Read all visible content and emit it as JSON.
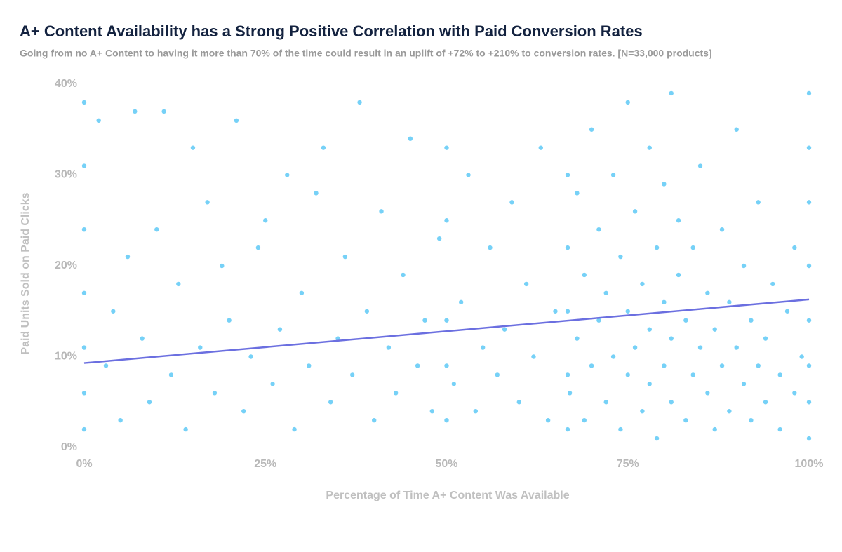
{
  "chart_data": {
    "type": "scatter",
    "title": "A+ Content Availability has a Strong Positive Correlation with Paid Conversion Rates",
    "subtitle": "Going from no A+ Content to having it more than 70% of the time could result in an uplift of +72% to +210% to conversion rates. [N=33,000 products]",
    "x_label": "Percentage of Time A+ Content Was Available",
    "y_label": "Paid Units Sold on Paid Clicks",
    "xlim": [
      0,
      100
    ],
    "ylim": [
      0,
      40
    ],
    "xticks": [
      {
        "value": 0,
        "label": "0%"
      },
      {
        "value": 25,
        "label": "25%"
      },
      {
        "value": 50,
        "label": "50%"
      },
      {
        "value": 75,
        "label": "75%"
      },
      {
        "value": 100,
        "label": "100%"
      }
    ],
    "yticks": [
      {
        "value": 0,
        "label": "0%"
      },
      {
        "value": 10,
        "label": "10%"
      },
      {
        "value": 20,
        "label": "20%"
      },
      {
        "value": 30,
        "label": "30%"
      },
      {
        "value": 40,
        "label": "40%"
      }
    ],
    "grid": false,
    "series": [
      {
        "type": "scatter",
        "color": "#1ab2f2",
        "x": [
          0,
          0,
          0,
          0,
          0,
          0,
          0,
          100,
          100,
          100,
          100,
          100,
          100,
          100,
          100,
          50,
          50,
          50,
          50,
          50,
          66.7,
          66.7,
          66.7,
          66.7,
          66.7,
          2,
          3,
          4,
          5,
          6,
          7,
          8,
          9,
          10,
          11,
          12,
          13,
          14,
          15,
          16,
          17,
          18,
          19,
          20,
          21,
          22,
          23,
          24,
          25,
          26,
          27,
          28,
          29,
          30,
          31,
          32,
          33,
          34,
          35,
          36,
          37,
          38,
          39,
          40,
          41,
          42,
          43,
          44,
          45,
          46,
          47,
          48,
          49,
          51,
          52,
          53,
          54,
          55,
          56,
          57,
          58,
          59,
          60,
          61,
          62,
          63,
          64,
          65,
          67,
          68,
          68,
          69,
          69,
          70,
          70,
          71,
          71,
          72,
          72,
          73,
          73,
          74,
          74,
          75,
          75,
          75,
          76,
          76,
          77,
          77,
          78,
          78,
          78,
          79,
          79,
          80,
          80,
          80,
          81,
          81,
          81,
          82,
          82,
          83,
          83,
          84,
          84,
          85,
          85,
          86,
          86,
          87,
          87,
          88,
          88,
          89,
          89,
          90,
          90,
          91,
          91,
          92,
          92,
          93,
          93,
          94,
          94,
          95,
          96,
          96,
          97,
          98,
          98,
          99
        ],
        "values": [
          2,
          6,
          11,
          17,
          24,
          31,
          38,
          1,
          5,
          9,
          14,
          20,
          27,
          33,
          39,
          3,
          9,
          14,
          25,
          33,
          2,
          8,
          15,
          22,
          30,
          36,
          9,
          15,
          3,
          21,
          37,
          12,
          5,
          24,
          37,
          8,
          18,
          2,
          33,
          11,
          27,
          6,
          20,
          14,
          36,
          4,
          10,
          22,
          25,
          7,
          13,
          30,
          2,
          17,
          9,
          28,
          33,
          5,
          12,
          21,
          8,
          38,
          15,
          3,
          26,
          11,
          6,
          19,
          34,
          9,
          14,
          4,
          23,
          7,
          16,
          30,
          4,
          11,
          22,
          8,
          13,
          27,
          5,
          18,
          10,
          33,
          3,
          15,
          6,
          12,
          28,
          3,
          19,
          9,
          35,
          14,
          24,
          5,
          17,
          10,
          30,
          2,
          21,
          8,
          15,
          38,
          11,
          26,
          4,
          18,
          7,
          13,
          33,
          22,
          1,
          9,
          16,
          29,
          5,
          12,
          39,
          19,
          25,
          3,
          14,
          8,
          22,
          11,
          31,
          6,
          17,
          2,
          13,
          9,
          24,
          4,
          16,
          11,
          35,
          7,
          20,
          3,
          14,
          9,
          27,
          5,
          12,
          18,
          2,
          8,
          15,
          6,
          22,
          10
        ]
      },
      {
        "type": "line",
        "color": "#6b6fe0",
        "x": [
          0,
          100
        ],
        "values": [
          9.3,
          16.3
        ]
      }
    ]
  }
}
